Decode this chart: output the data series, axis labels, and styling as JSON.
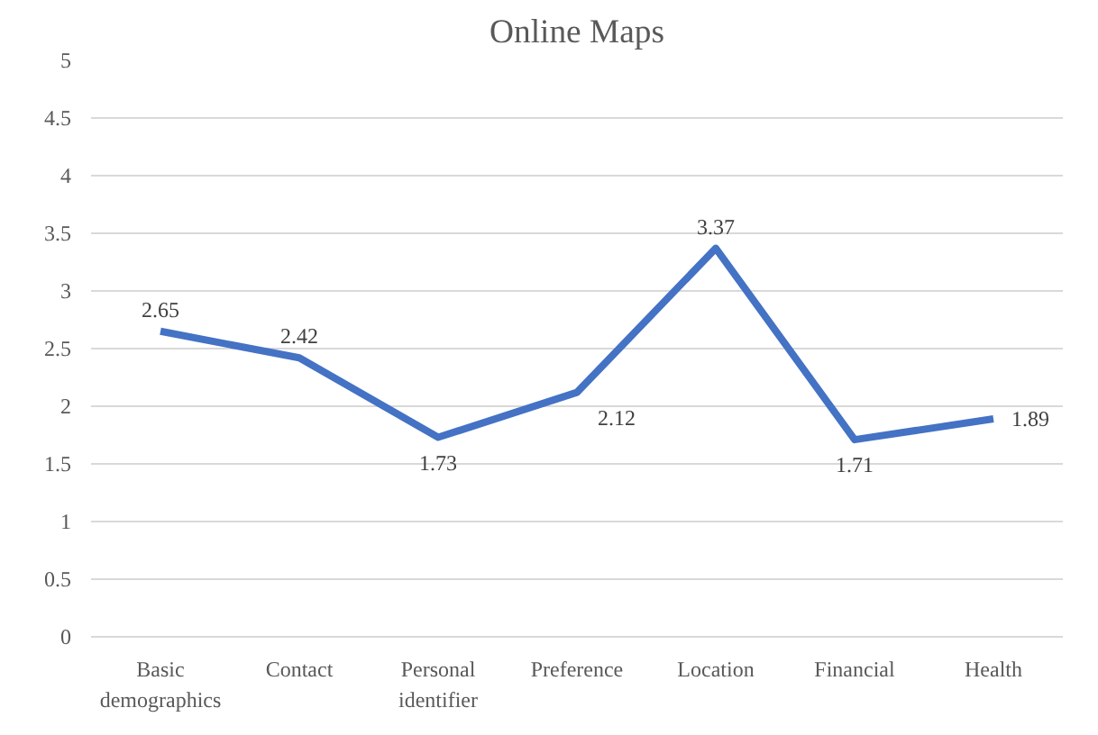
{
  "chart_data": {
    "type": "line",
    "title": "Online Maps",
    "categories": [
      "Basic demographics",
      "Contact",
      "Personal identifier",
      "Preference",
      "Location",
      "Financial",
      "Health"
    ],
    "series": [
      {
        "color": "#4472c4",
        "values": [
          2.65,
          2.42,
          1.73,
          2.12,
          3.37,
          1.71,
          1.89
        ]
      }
    ],
    "ylim": [
      0,
      5
    ],
    "yticks": [
      0,
      0.5,
      1,
      1.5,
      2,
      2.5,
      3,
      3.5,
      4,
      4.5,
      5
    ],
    "grid": "y",
    "data_labels": true,
    "marker": "none",
    "line_style": "solid"
  }
}
